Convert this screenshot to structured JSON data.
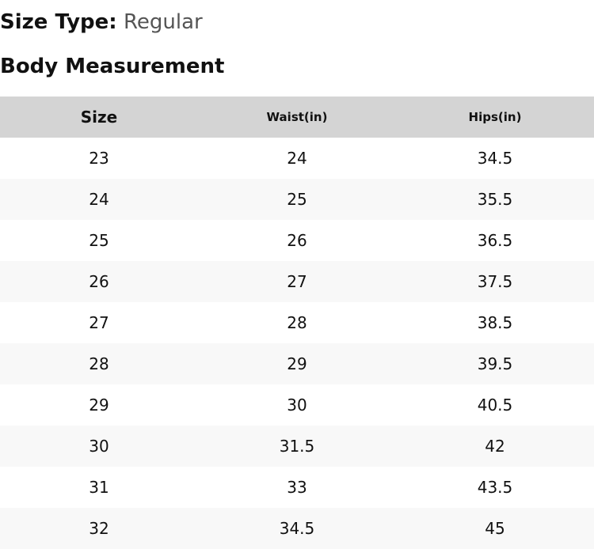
{
  "size_type": {
    "label": "Size Type:",
    "value": "Regular"
  },
  "section_title": "Body Measurement",
  "table": {
    "headers": [
      "Size",
      "Waist(in)",
      "Hips(in)"
    ],
    "rows": [
      [
        "23",
        "24",
        "34.5"
      ],
      [
        "24",
        "25",
        "35.5"
      ],
      [
        "25",
        "26",
        "36.5"
      ],
      [
        "26",
        "27",
        "37.5"
      ],
      [
        "27",
        "28",
        "38.5"
      ],
      [
        "28",
        "29",
        "39.5"
      ],
      [
        "29",
        "30",
        "40.5"
      ],
      [
        "30",
        "31.5",
        "42"
      ],
      [
        "31",
        "33",
        "43.5"
      ],
      [
        "32",
        "34.5",
        "45"
      ]
    ]
  },
  "colors": {
    "header_bg": "#d4d4d4",
    "alt_row_bg": "#f8f8f8",
    "value_text": "#555555"
  }
}
